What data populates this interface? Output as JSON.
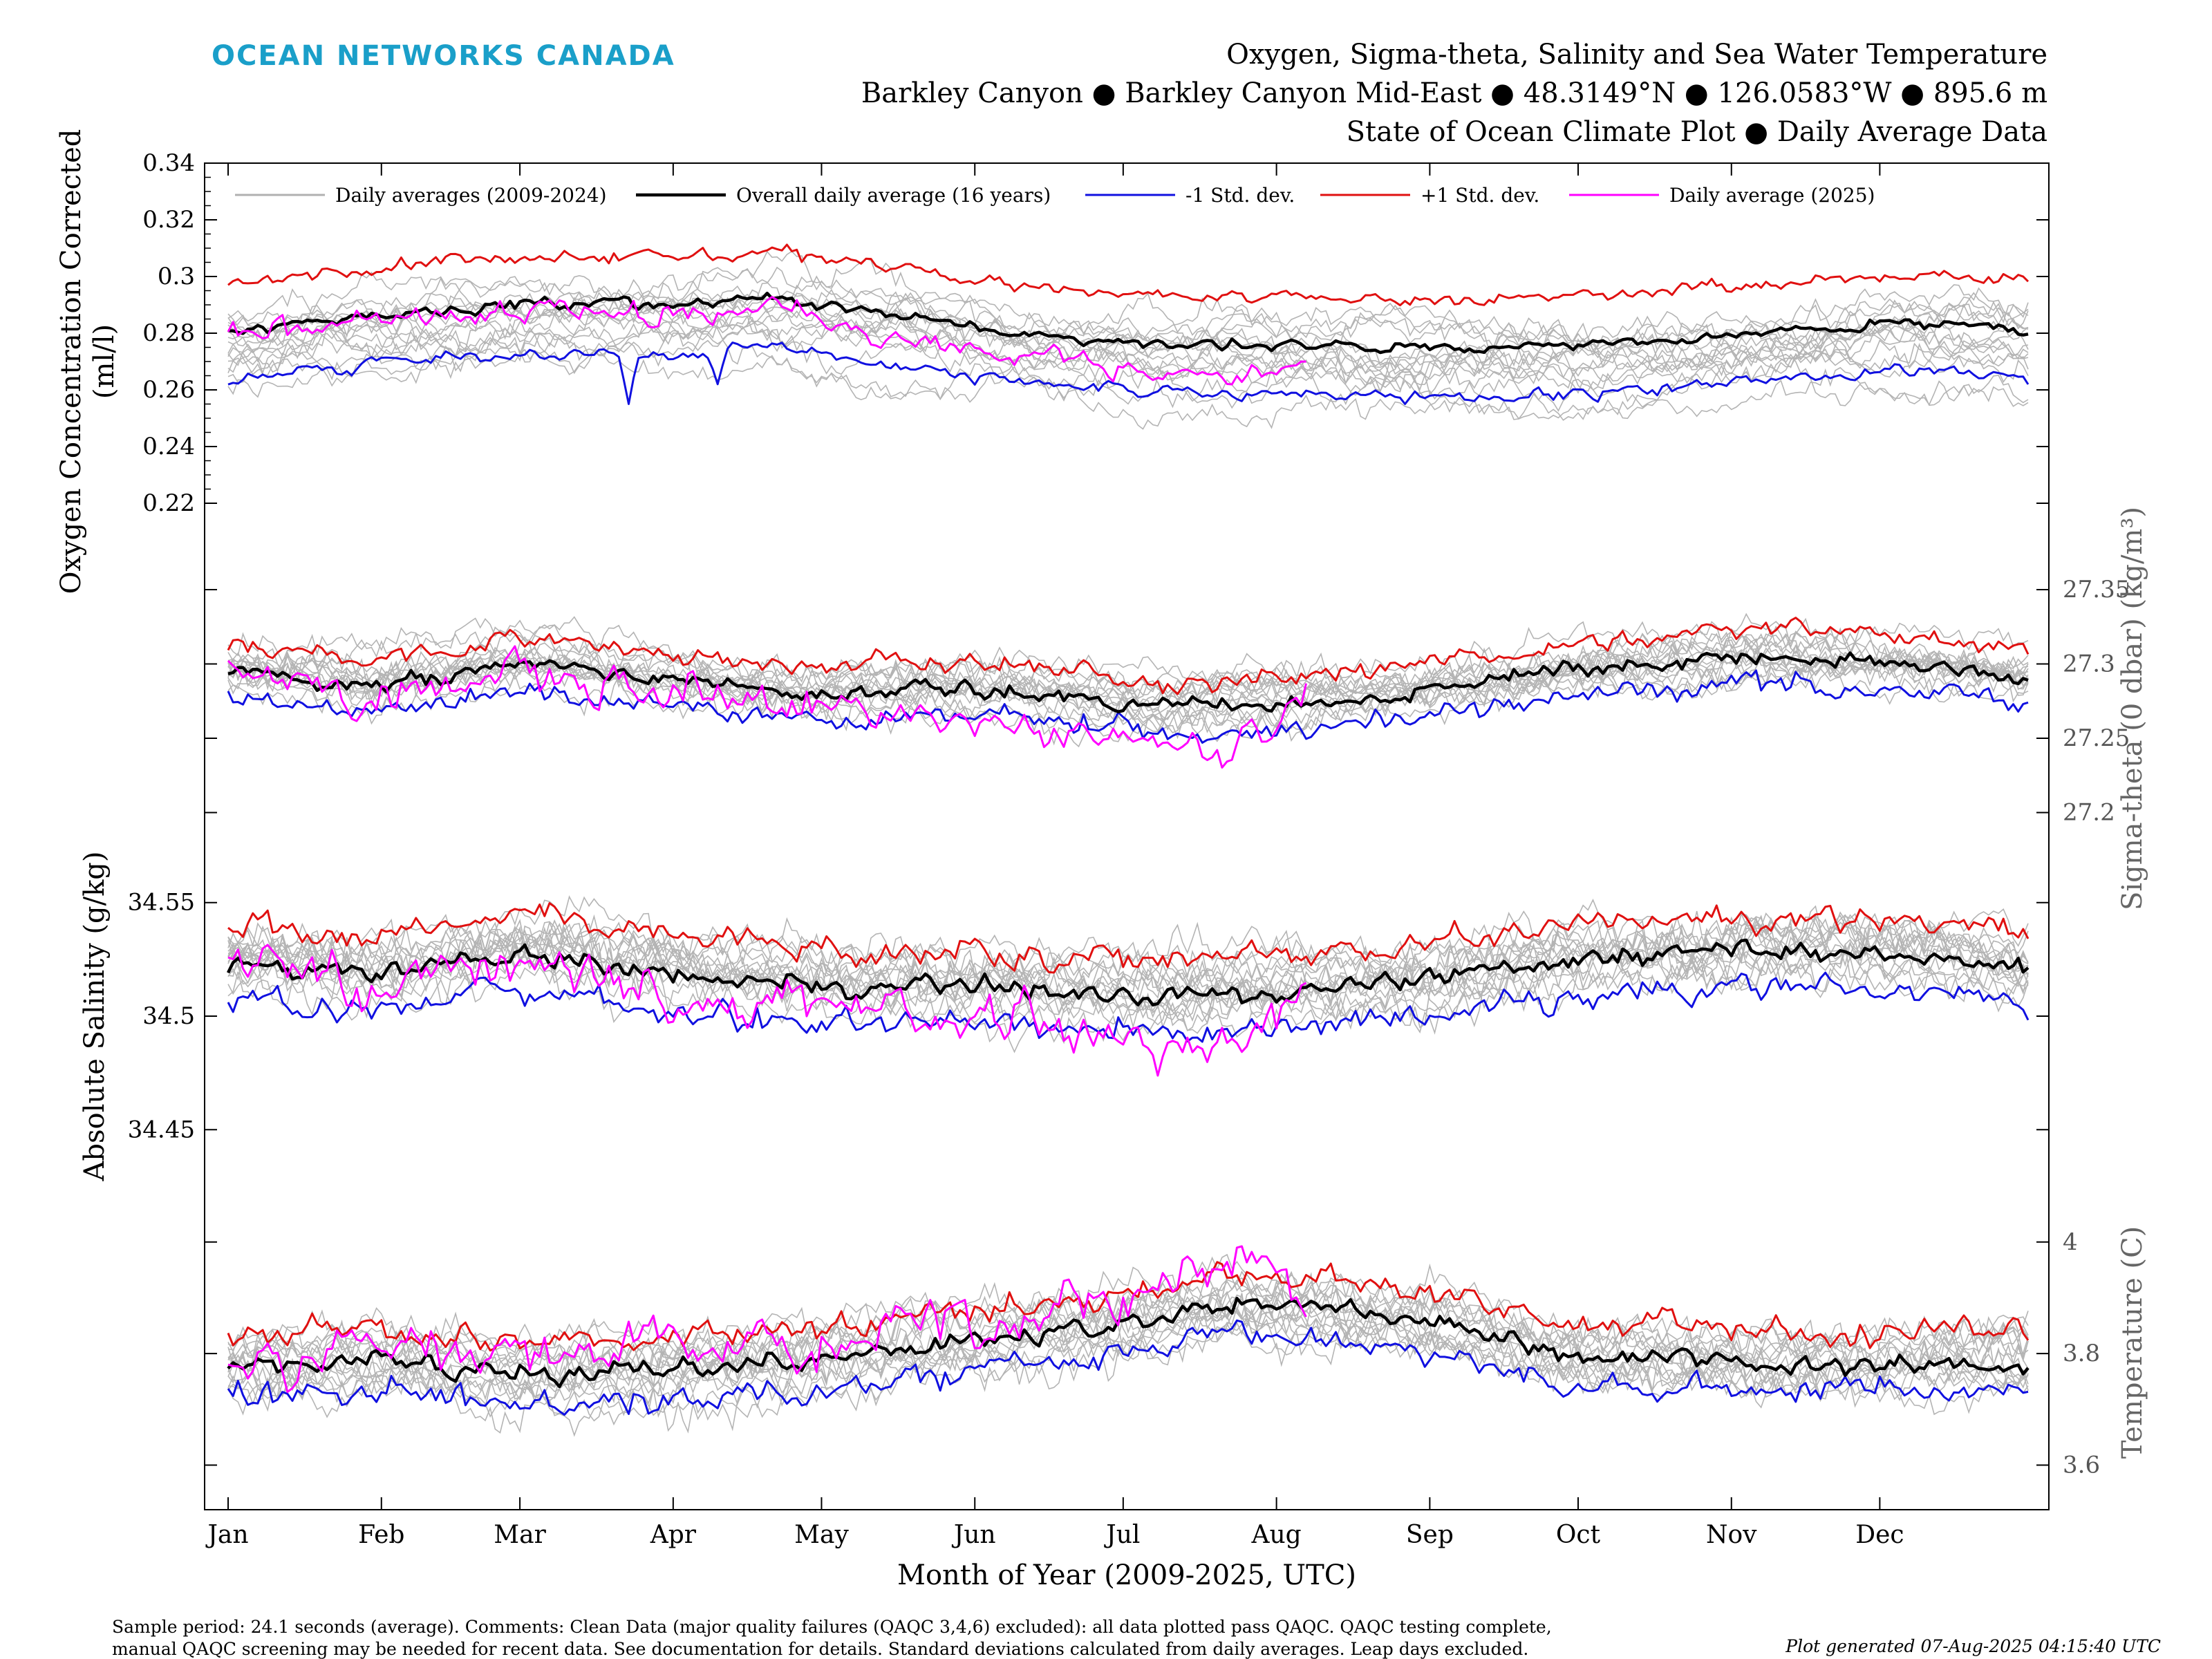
{
  "header": {
    "brand": "OCEAN NETWORKS CANADA",
    "title_lines": [
      "Oxygen, Sigma-theta, Salinity and Sea Water Temperature",
      "Barkley Canyon ● Barkley Canyon Mid-East ● 48.3149°N ● 126.0583°W ● 895.6 m",
      "State of Ocean Climate Plot ● Daily Average Data"
    ]
  },
  "legend": [
    {
      "label": "Daily averages (2009-2024)",
      "color": "#b0b0b0"
    },
    {
      "label": "Overall daily average (16 years)",
      "color": "#000000"
    },
    {
      "label": "-1 Std. dev.",
      "color": "#1010e0"
    },
    {
      "label": "+1 Std. dev.",
      "color": "#e01010"
    },
    {
      "label": "Daily average (2025)",
      "color": "#ff00ff"
    }
  ],
  "x_axis": {
    "label": "Month of Year (2009-2025, UTC)",
    "months": [
      "Jan",
      "Feb",
      "Mar",
      "Apr",
      "May",
      "Jun",
      "Jul",
      "Aug",
      "Sep",
      "Oct",
      "Nov",
      "Dec"
    ]
  },
  "chart_data": [
    {
      "type": "line",
      "name": "oxygen",
      "ylabel_lines": [
        "Oxygen Concentration Corrected",
        "(ml/l)"
      ],
      "yaxis_side": "left",
      "ylim": [
        0.2,
        0.34
      ],
      "yticks": [
        "0.22",
        "0.24",
        "0.26",
        "0.28",
        "0.3",
        "0.32",
        "0.34"
      ],
      "mean_profile": [
        [
          1,
          0.28
        ],
        [
          30,
          0.286
        ],
        [
          60,
          0.29
        ],
        [
          90,
          0.29
        ],
        [
          110,
          0.292
        ],
        [
          130,
          0.288
        ],
        [
          160,
          0.28
        ],
        [
          190,
          0.276
        ],
        [
          220,
          0.276
        ],
        [
          250,
          0.274
        ],
        [
          280,
          0.276
        ],
        [
          310,
          0.28
        ],
        [
          340,
          0.284
        ],
        [
          365,
          0.281
        ]
      ],
      "std_dev": 0.017,
      "current_end_day": 219,
      "current_profile": [
        [
          1,
          0.28
        ],
        [
          30,
          0.285
        ],
        [
          60,
          0.287
        ],
        [
          100,
          0.287
        ],
        [
          110,
          0.29
        ],
        [
          130,
          0.278
        ],
        [
          150,
          0.274
        ],
        [
          170,
          0.272
        ],
        [
          190,
          0.264
        ],
        [
          210,
          0.266
        ],
        [
          219,
          0.268
        ]
      ],
      "dips": [
        {
          "day": 82,
          "value": 0.255
        },
        {
          "day": 100,
          "value": 0.262
        }
      ],
      "noise": 0.002
    },
    {
      "type": "line",
      "name": "sigma-theta",
      "ylabel_lines": [
        "Sigma-theta (0 dbar) (kg/m³)"
      ],
      "yaxis_side": "right",
      "ylim": [
        27.17,
        27.37
      ],
      "yticks": [
        "27.2",
        "27.25",
        "27.3",
        "27.35"
      ],
      "mean_profile": [
        [
          1,
          27.295
        ],
        [
          30,
          27.285
        ],
        [
          60,
          27.3
        ],
        [
          90,
          27.29
        ],
        [
          120,
          27.28
        ],
        [
          150,
          27.285
        ],
        [
          190,
          27.27
        ],
        [
          220,
          27.275
        ],
        [
          250,
          27.285
        ],
        [
          280,
          27.3
        ],
        [
          310,
          27.305
        ],
        [
          340,
          27.3
        ],
        [
          365,
          27.29
        ]
      ],
      "std_dev": 0.018,
      "current_end_day": 219,
      "current_profile": [
        [
          1,
          27.3
        ],
        [
          30,
          27.27
        ],
        [
          60,
          27.3
        ],
        [
          90,
          27.28
        ],
        [
          120,
          27.275
        ],
        [
          150,
          27.26
        ],
        [
          180,
          27.25
        ],
        [
          200,
          27.235
        ],
        [
          210,
          27.25
        ],
        [
          219,
          27.285
        ]
      ],
      "noise": 0.006
    },
    {
      "type": "line",
      "name": "absolute-salinity",
      "ylabel_lines": [
        "Absolute Salinity (g/kg)"
      ],
      "yaxis_side": "left",
      "ylim": [
        34.43,
        34.57
      ],
      "yticks": [
        "34.45",
        "34.5",
        "34.55"
      ],
      "mean_profile": [
        [
          1,
          34.524
        ],
        [
          30,
          34.518
        ],
        [
          60,
          34.528
        ],
        [
          90,
          34.52
        ],
        [
          120,
          34.514
        ],
        [
          150,
          34.514
        ],
        [
          190,
          34.508
        ],
        [
          220,
          34.512
        ],
        [
          250,
          34.518
        ],
        [
          280,
          34.526
        ],
        [
          310,
          34.528
        ],
        [
          340,
          34.527
        ],
        [
          365,
          34.52
        ]
      ],
      "std_dev": 0.016,
      "current_end_day": 219,
      "current_profile": [
        [
          1,
          34.528
        ],
        [
          30,
          34.51
        ],
        [
          60,
          34.525
        ],
        [
          90,
          34.51
        ],
        [
          120,
          34.505
        ],
        [
          150,
          34.5
        ],
        [
          170,
          34.495
        ],
        [
          190,
          34.49
        ],
        [
          205,
          34.485
        ],
        [
          219,
          34.52
        ]
      ],
      "noise": 0.005
    },
    {
      "type": "line",
      "name": "temperature",
      "ylabel_lines": [
        "Temperature (C)"
      ],
      "yaxis_side": "right",
      "ylim": [
        3.52,
        4.12
      ],
      "yticks": [
        "3.6",
        "3.8",
        "4"
      ],
      "mean_profile": [
        [
          1,
          3.78
        ],
        [
          30,
          3.79
        ],
        [
          60,
          3.76
        ],
        [
          90,
          3.77
        ],
        [
          120,
          3.79
        ],
        [
          150,
          3.82
        ],
        [
          180,
          3.85
        ],
        [
          205,
          3.89
        ],
        [
          220,
          3.88
        ],
        [
          250,
          3.85
        ],
        [
          270,
          3.8
        ],
        [
          300,
          3.79
        ],
        [
          330,
          3.78
        ],
        [
          365,
          3.79
        ]
      ],
      "std_dev": 0.055,
      "current_end_day": 219,
      "current_profile": [
        [
          1,
          3.76
        ],
        [
          30,
          3.83
        ],
        [
          60,
          3.78
        ],
        [
          90,
          3.83
        ],
        [
          120,
          3.8
        ],
        [
          140,
          3.86
        ],
        [
          160,
          3.85
        ],
        [
          180,
          3.9
        ],
        [
          195,
          3.95
        ],
        [
          205,
          3.98
        ],
        [
          213,
          3.94
        ],
        [
          219,
          3.86
        ]
      ],
      "noise": 0.02
    }
  ],
  "footer": {
    "sample_lines": [
      "Sample period: 24.1 seconds (average). Comments: Clean Data (major quality failures (QAQC 3,4,6) excluded): all data plotted pass QAQC. QAQC testing complete,",
      "manual QAQC screening may be needed for recent data. See documentation for details. Standard deviations calculated from daily averages. Leap days excluded."
    ],
    "generated": "Plot generated 07-Aug-2025 04:15:40 UTC"
  }
}
